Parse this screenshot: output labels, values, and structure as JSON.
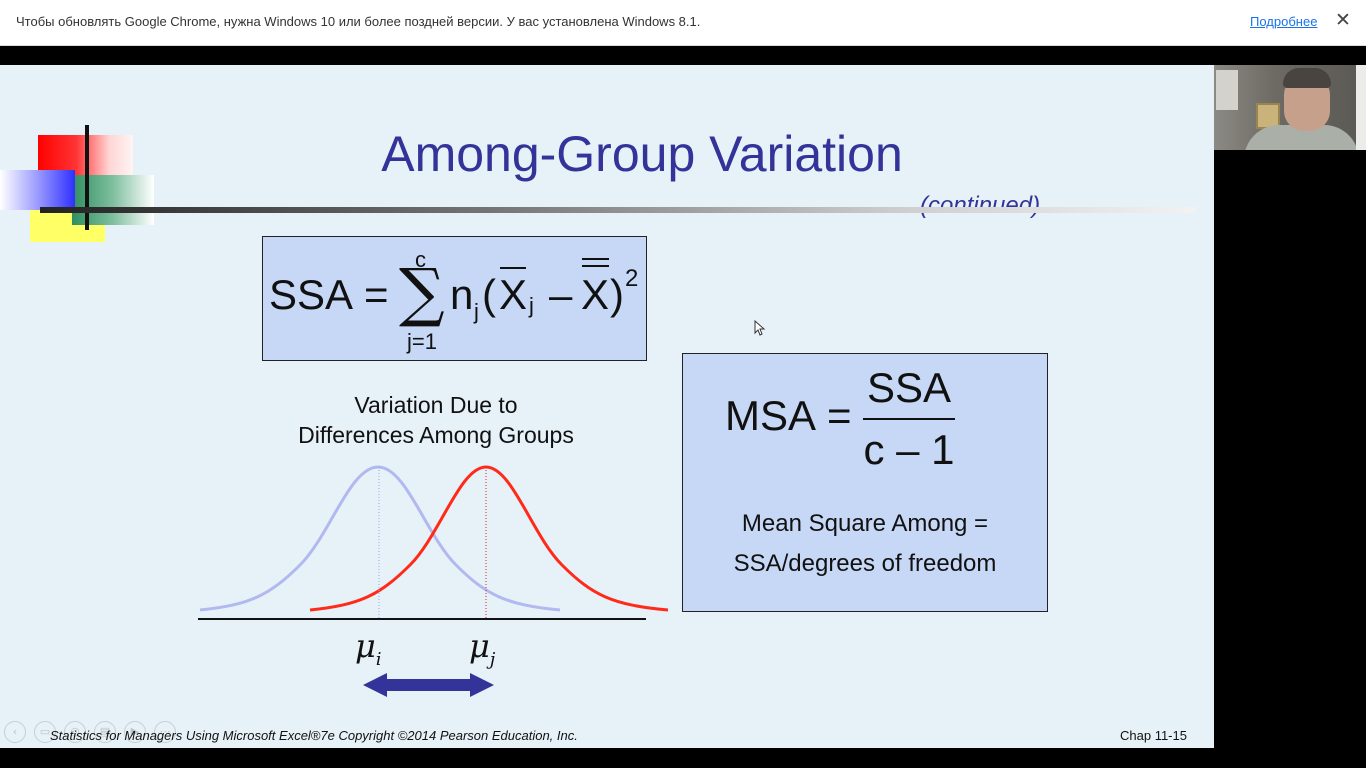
{
  "infobar": {
    "message": "Чтобы обновлять Google Chrome, нужна Windows 10 или более поздней версии. У вас установлена Windows 8.1.",
    "link": "Подробнее",
    "close": "✕"
  },
  "slide": {
    "title": "Among-Group Variation",
    "continued": "(continued)",
    "ssa_formula": {
      "lhs": "SSA",
      "eq": "=",
      "sum_top": "c",
      "sum_sym": "∑",
      "sum_bottom": "j=1",
      "n": "n",
      "n_sub": "j",
      "open": "(",
      "xbar": "X",
      "xbar_sub": "j",
      "minus": "–",
      "xdbar": "X",
      "close": ")",
      "exp": "2"
    },
    "variation_label_line1": "Variation Due to",
    "variation_label_line2": "Differences Among Groups",
    "mu_i": "μ",
    "mu_i_sub": "i",
    "mu_j": "μ",
    "mu_j_sub": "j",
    "msa_formula": {
      "lhs": "MSA",
      "eq": "=",
      "numerator": "SSA",
      "denominator": "c – 1"
    },
    "msa_desc_line1": "Mean Square Among =",
    "msa_desc_line2": "SSA/degrees of freedom",
    "footer_left": "Statistics for Managers Using Microsoft Excel®7e Copyright ©2014 Pearson Education, Inc.",
    "footer_right": "Chap 11-15",
    "nav_buttons": [
      "‹",
      "▭",
      "◎",
      "▤",
      "▶",
      "⋯"
    ]
  },
  "colors": {
    "title": "#333399",
    "slide_bg": "#e6f2f8",
    "box_fill": "#c6d8f6",
    "curve_i": "#b2b8f0",
    "curve_j": "#ff2a1a",
    "arrow": "#333399"
  }
}
